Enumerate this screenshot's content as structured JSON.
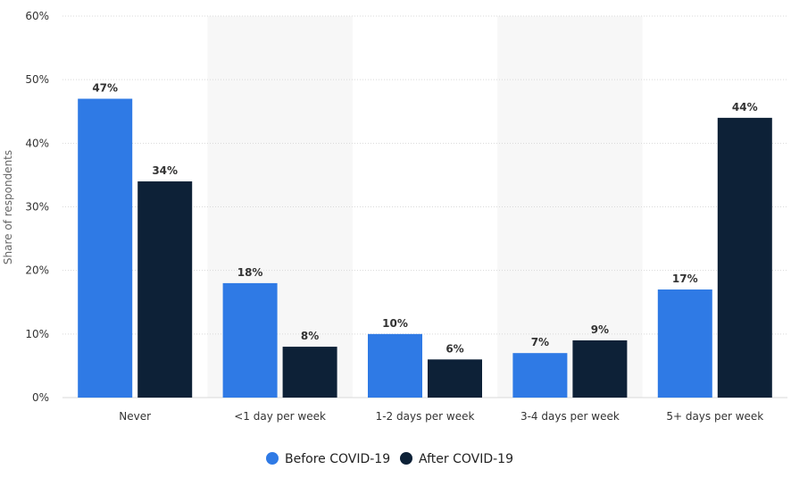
{
  "chart_data": {
    "type": "bar",
    "categories": [
      "Never",
      "<1 day per week",
      "1-2 days per week",
      "3-4 days per week",
      "5+ days per week"
    ],
    "series": [
      {
        "name": "Before COVID-19",
        "color": "#2f7ae5",
        "values": [
          47,
          18,
          10,
          7,
          17
        ],
        "labels": [
          "47%",
          "18%",
          "10%",
          "7%",
          "17%"
        ]
      },
      {
        "name": "After COVID-19",
        "color": "#0d2137",
        "values": [
          34,
          8,
          6,
          9,
          44
        ],
        "labels": [
          "34%",
          "8%",
          "6%",
          "9%",
          "44%"
        ]
      }
    ],
    "ylabel": "Share of respondents",
    "ylim": [
      0,
      60
    ],
    "yticks": [
      0,
      10,
      20,
      30,
      40,
      50,
      60
    ],
    "ytick_labels": [
      "0%",
      "10%",
      "20%",
      "30%",
      "40%",
      "50%",
      "60%"
    ],
    "grid": true,
    "legend_position": "bottom-center"
  }
}
